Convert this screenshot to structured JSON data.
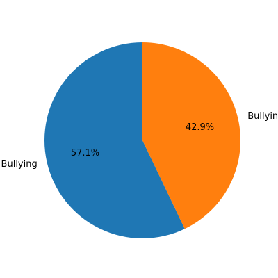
{
  "chart_data": {
    "type": "pie",
    "categories": [
      "Bullying",
      "Bullying"
    ],
    "values": [
      57.1,
      42.9
    ],
    "value_labels": [
      "57.1%",
      "42.9%"
    ],
    "colors": [
      "#1f77b4",
      "#ff7f0e"
    ],
    "start_angle_deg": 90,
    "direction": "counterclockwise",
    "title": "",
    "legend": "none"
  }
}
